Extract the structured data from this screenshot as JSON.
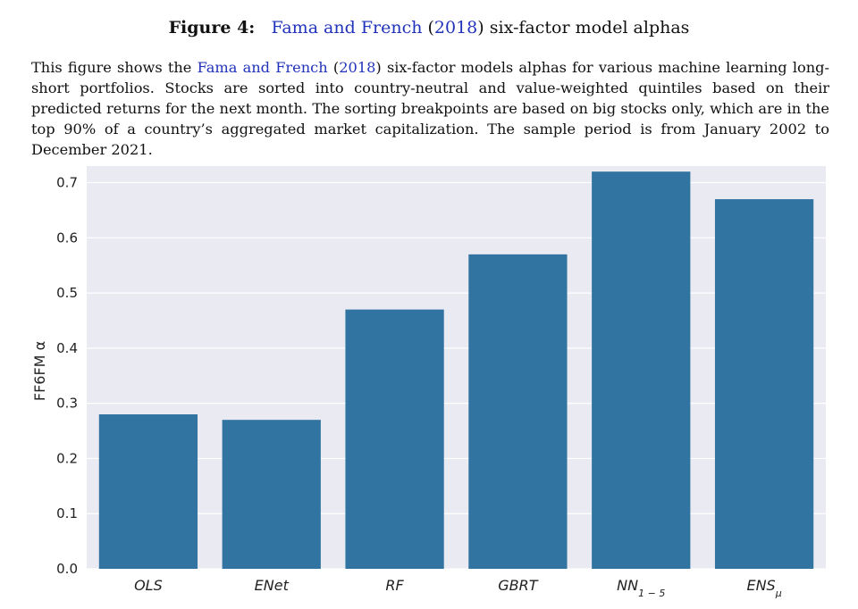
{
  "caption": {
    "figure_label": "Figure 4:",
    "title_cite": "Fama and French",
    "title_year": "(2018)",
    "title_rest": "six-factor model alphas",
    "body_pre": "This figure shows the ",
    "body_cite": "Fama and French",
    "body_year": " (2018)",
    "body_post": " six-factor models alphas for various machine learning long-short portfolios. Stocks are sorted into country-neutral and value-weighted quintiles based on their predicted returns for the next month. The sorting breakpoints are based on big stocks only, which are in the top 90% of a country’s aggregated market capitalization. The sample period is from January 2002 to December 2021."
  },
  "colors": {
    "bar": "#3274a1",
    "plot_bg": "#eaeaf2",
    "grid": "#ffffff",
    "citation": "#2233bb"
  },
  "chart_data": {
    "type": "bar",
    "categories": [
      "OLS",
      "ENet",
      "RF",
      "GBRT",
      "NN1−5",
      "ENSμ"
    ],
    "category_display": [
      {
        "base": "OLS",
        "sub": ""
      },
      {
        "base": "ENet",
        "sub": ""
      },
      {
        "base": "RF",
        "sub": ""
      },
      {
        "base": "GBRT",
        "sub": ""
      },
      {
        "base": "NN",
        "sub": "1 − 5"
      },
      {
        "base": "ENS",
        "sub": "μ"
      }
    ],
    "values": [
      0.28,
      0.27,
      0.47,
      0.57,
      0.72,
      0.67
    ],
    "xlabel": "",
    "ylabel": "FF6FM α",
    "ylim": [
      0,
      0.73
    ],
    "yticks": [
      "0.0",
      "0.1",
      "0.2",
      "0.3",
      "0.4",
      "0.5",
      "0.6",
      "0.7"
    ],
    "grid": "horizontal"
  }
}
